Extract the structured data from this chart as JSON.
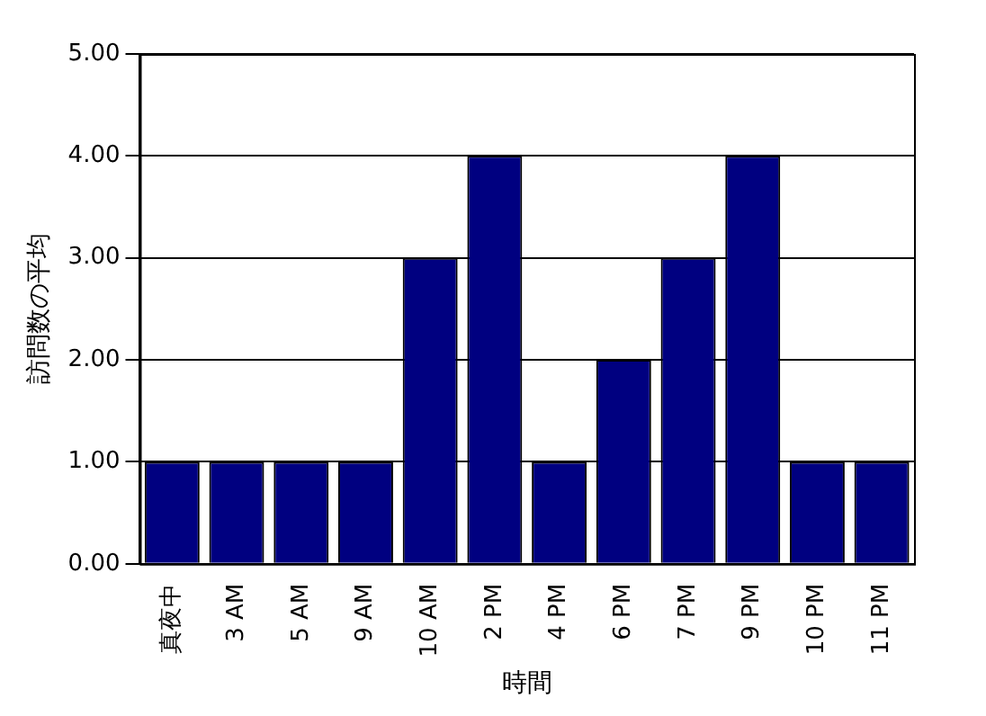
{
  "chart_data": {
    "type": "bar",
    "xlabel": "時間",
    "ylabel": "訪問数の平均",
    "categories": [
      "真夜中",
      "3 AM",
      "5 AM",
      "9 AM",
      "10 AM",
      "2 PM",
      "4 PM",
      "6 PM",
      "7 PM",
      "9 PM",
      "10 PM",
      "11 PM"
    ],
    "values": [
      1,
      1,
      1,
      1,
      3,
      4,
      1,
      2,
      3,
      4,
      1,
      1
    ],
    "color": "#000080",
    "ylim": [
      0,
      5
    ],
    "yticks": [
      {
        "value": 0,
        "label": "0.00"
      },
      {
        "value": 1,
        "label": "1.00"
      },
      {
        "value": 2,
        "label": "2.00"
      },
      {
        "value": 3,
        "label": "3.00"
      },
      {
        "value": 4,
        "label": "4.00"
      },
      {
        "value": 5,
        "label": "5.00"
      }
    ],
    "grid": "y"
  }
}
